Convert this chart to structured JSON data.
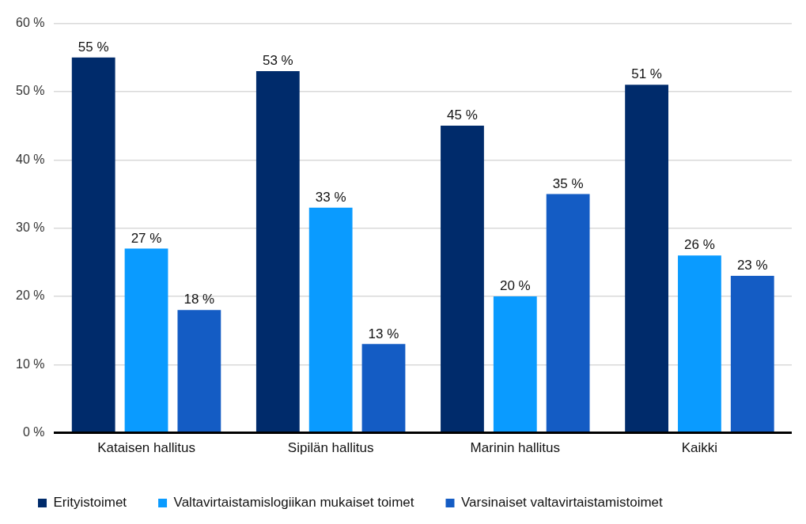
{
  "chart_data": {
    "type": "bar",
    "categories": [
      "Kataisen hallitus",
      "Sipilän hallitus",
      "Marinin hallitus",
      "Kaikki"
    ],
    "series": [
      {
        "name": "Erityistoimet",
        "color": "#002b6b",
        "values": [
          55,
          53,
          45,
          51
        ],
        "value_labels": [
          "55 %",
          "53 %",
          "45 %",
          "51 %"
        ]
      },
      {
        "name": "Valtavirtaistamislogiikan mukaiset toimet",
        "color": "#0a9bff",
        "values": [
          27,
          33,
          20,
          26
        ],
        "value_labels": [
          "27 %",
          "33 %",
          "20 %",
          "26 %"
        ]
      },
      {
        "name": "Varsinaiset valtavirtaistamistoimet",
        "color": "#145cc4",
        "values": [
          18,
          13,
          35,
          23
        ],
        "value_labels": [
          "18 %",
          "13 %",
          "35 %",
          "23 %"
        ]
      }
    ],
    "ylim": [
      0,
      60
    ],
    "yticks": [
      {
        "value": 0,
        "label": "0 %"
      },
      {
        "value": 10,
        "label": "10 %"
      },
      {
        "value": 20,
        "label": "20 %"
      },
      {
        "value": 30,
        "label": "30 %"
      },
      {
        "value": 40,
        "label": "40 %"
      },
      {
        "value": 50,
        "label": "50 %"
      },
      {
        "value": 60,
        "label": "60 %"
      }
    ],
    "grid": "y",
    "legend": "bottom"
  }
}
